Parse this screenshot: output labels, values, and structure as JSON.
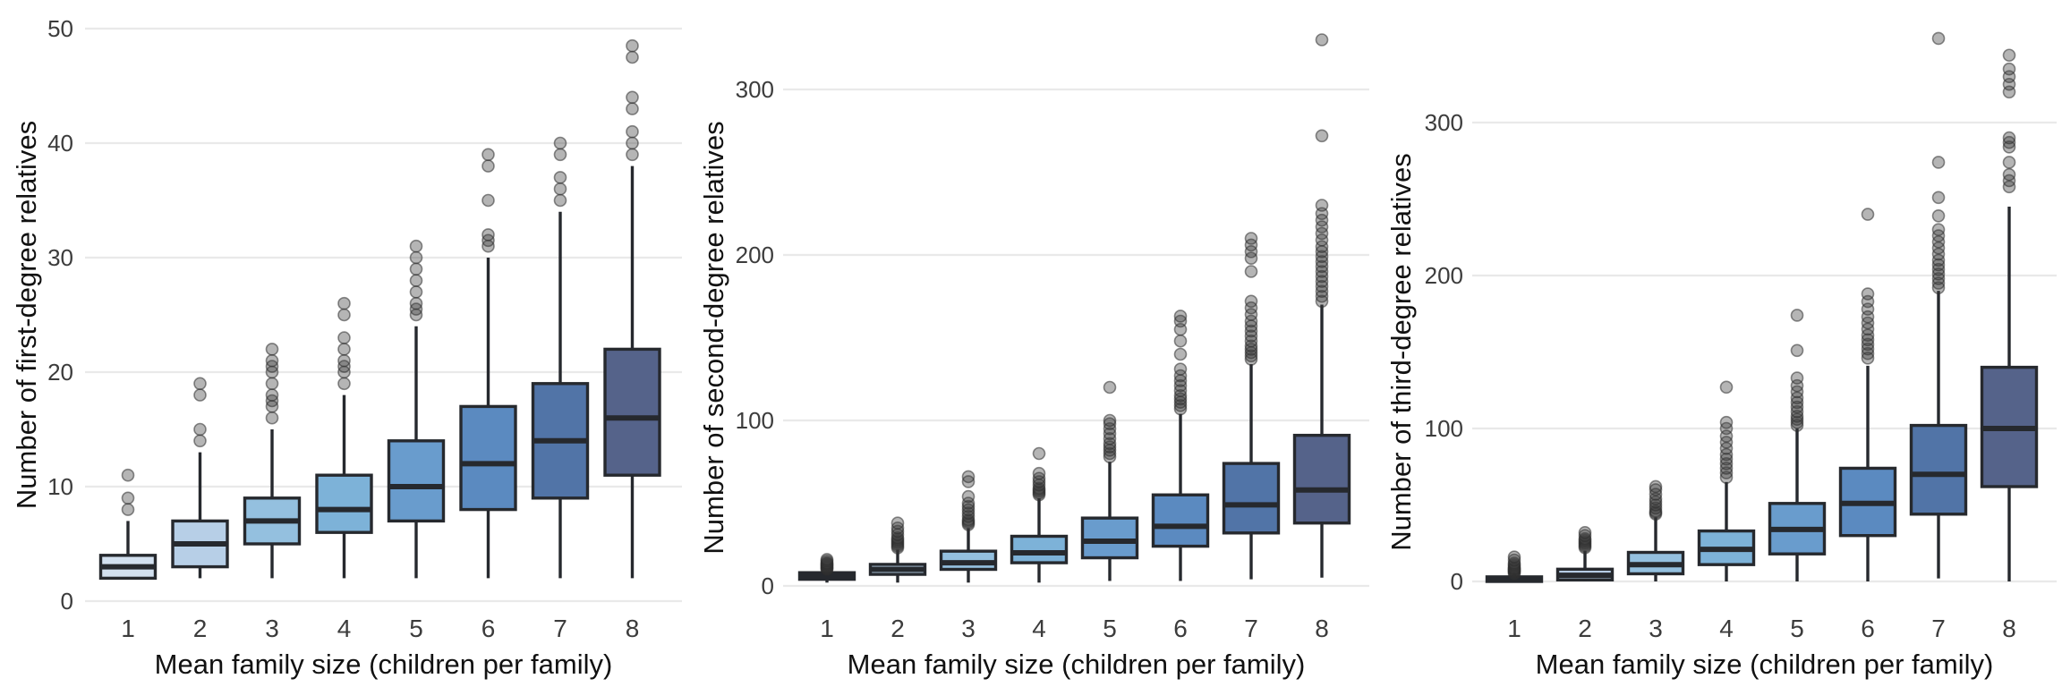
{
  "figure": {
    "background": "#ffffff",
    "xlabel": "Mean family size (children per family)"
  },
  "colors": {
    "box_stroke": "#26292e",
    "median": "#26292e",
    "whisker": "#26292e",
    "gridline": "#e9e9e9",
    "tick_text": "#3c3c3c",
    "axis_title_text": "#111111",
    "outlier_fill": "rgba(60,60,60,0.38)",
    "outlier_stroke": "rgba(45,45,45,0.55)",
    "palette": [
      "#d2e0ef",
      "#b7cfe7",
      "#94c0df",
      "#7db2d8",
      "#699ccd",
      "#5b8ac0",
      "#5174a7",
      "#55638a"
    ]
  },
  "chart_data": [
    {
      "type": "boxplot",
      "title": "",
      "xlabel": "Mean family size (children per family)",
      "ylabel": "Number of first-degree relatives",
      "ylim": [
        0,
        51
      ],
      "yticks": [
        0,
        10,
        20,
        30,
        40,
        50
      ],
      "grid": true,
      "categories": [
        "1",
        "2",
        "3",
        "4",
        "5",
        "6",
        "7",
        "8"
      ],
      "boxes": [
        {
          "category": "1",
          "whisker_low": 2,
          "q1": 2,
          "median": 3,
          "q3": 4,
          "whisker_high": 7,
          "outliers": [
            8,
            9,
            11
          ],
          "fill": "#d2e0ef"
        },
        {
          "category": "2",
          "whisker_low": 2,
          "q1": 3,
          "median": 5,
          "q3": 7,
          "whisker_high": 13,
          "outliers": [
            14,
            15,
            18,
            19
          ],
          "fill": "#b7cfe7"
        },
        {
          "category": "3",
          "whisker_low": 2,
          "q1": 5,
          "median": 7,
          "q3": 9,
          "whisker_high": 15,
          "outliers": [
            16,
            17,
            17.5,
            18,
            19,
            20,
            20.5,
            21,
            22
          ],
          "fill": "#94c0df"
        },
        {
          "category": "4",
          "whisker_low": 2,
          "q1": 6,
          "median": 8,
          "q3": 11,
          "whisker_high": 18,
          "outliers": [
            19,
            20,
            20.5,
            21,
            22,
            23,
            25,
            26
          ],
          "fill": "#7db2d8"
        },
        {
          "category": "5",
          "whisker_low": 2,
          "q1": 7,
          "median": 10,
          "q3": 14,
          "whisker_high": 24,
          "outliers": [
            25,
            25.5,
            26,
            27,
            28,
            29,
            30,
            31
          ],
          "fill": "#699ccd"
        },
        {
          "category": "6",
          "whisker_low": 2,
          "q1": 8,
          "median": 12,
          "q3": 17,
          "whisker_high": 30,
          "outliers": [
            31,
            31.5,
            32,
            35,
            38,
            39
          ],
          "fill": "#5b8ac0"
        },
        {
          "category": "7",
          "whisker_low": 2,
          "q1": 9,
          "median": 14,
          "q3": 19,
          "whisker_high": 34,
          "outliers": [
            35,
            36,
            37,
            39,
            40
          ],
          "fill": "#5174a7"
        },
        {
          "category": "8",
          "whisker_low": 2,
          "q1": 11,
          "median": 16,
          "q3": 22,
          "whisker_high": 38,
          "outliers": [
            39,
            40,
            41,
            43,
            44,
            47.5,
            48.5
          ],
          "fill": "#55638a"
        }
      ]
    },
    {
      "type": "boxplot",
      "title": "",
      "xlabel": "Mean family size (children per family)",
      "ylabel": "Number of second-degree relatives",
      "ylim": [
        0,
        335
      ],
      "yticks": [
        0,
        100,
        200,
        300
      ],
      "grid": true,
      "categories": [
        "1",
        "2",
        "3",
        "4",
        "5",
        "6",
        "7",
        "8"
      ],
      "boxes": [
        {
          "category": "1",
          "whisker_low": 2,
          "q1": 4,
          "median": 6,
          "q3": 8,
          "whisker_high": 9,
          "outliers": [
            10,
            10.5,
            11,
            11.5,
            12,
            12.5,
            13,
            13.5,
            14,
            15,
            16
          ],
          "fill": "#d2e0ef"
        },
        {
          "category": "2",
          "whisker_low": 2,
          "q1": 7,
          "median": 10,
          "q3": 13,
          "whisker_high": 22,
          "outliers": [
            23,
            24,
            25,
            26,
            27,
            28,
            29,
            31,
            33,
            35,
            38
          ],
          "fill": "#b7cfe7"
        },
        {
          "category": "3",
          "whisker_low": 2,
          "q1": 10,
          "median": 14,
          "q3": 21,
          "whisker_high": 35,
          "outliers": [
            37,
            38,
            39,
            40,
            42,
            44,
            46,
            48,
            50,
            54,
            63,
            66
          ],
          "fill": "#94c0df"
        },
        {
          "category": "4",
          "whisker_low": 2,
          "q1": 14,
          "median": 20,
          "q3": 30,
          "whisker_high": 53,
          "outliers": [
            55,
            56,
            57,
            58,
            59,
            61,
            63,
            65,
            68,
            80
          ],
          "fill": "#7db2d8"
        },
        {
          "category": "5",
          "whisker_low": 3,
          "q1": 17,
          "median": 27,
          "q3": 41,
          "whisker_high": 75,
          "outliers": [
            78,
            80,
            82,
            84,
            86,
            89,
            92,
            95,
            98,
            100,
            120
          ],
          "fill": "#699ccd"
        },
        {
          "category": "6",
          "whisker_low": 3,
          "q1": 24,
          "median": 36,
          "q3": 55,
          "whisker_high": 104,
          "outliers": [
            107,
            109,
            111,
            113,
            115,
            118,
            121,
            124,
            127,
            131,
            140,
            148,
            155,
            160,
            163
          ],
          "fill": "#5b8ac0"
        },
        {
          "category": "7",
          "whisker_low": 4,
          "q1": 32,
          "median": 49,
          "q3": 74,
          "whisker_high": 134,
          "outliers": [
            137,
            139,
            141,
            143,
            145,
            148,
            151,
            154,
            157,
            160,
            164,
            168,
            172,
            190,
            198,
            202,
            206,
            210
          ],
          "fill": "#5174a7"
        },
        {
          "category": "8",
          "whisker_low": 5,
          "q1": 38,
          "median": 58,
          "q3": 91,
          "whisker_high": 170,
          "outliers": [
            172,
            175,
            178,
            181,
            184,
            187,
            190,
            193,
            196,
            199,
            202,
            205,
            209,
            213,
            217,
            221,
            225,
            230,
            272,
            330
          ],
          "fill": "#55638a"
        }
      ]
    },
    {
      "type": "boxplot",
      "title": "",
      "xlabel": "Mean family size (children per family)",
      "ylabel": "Number of third-degree relatives",
      "ylim": [
        0,
        360
      ],
      "yticks": [
        0,
        100,
        200,
        300
      ],
      "grid": true,
      "categories": [
        "1",
        "2",
        "3",
        "4",
        "5",
        "6",
        "7",
        "8"
      ],
      "boxes": [
        {
          "category": "1",
          "whisker_low": 0,
          "q1": 0,
          "median": 1,
          "q3": 3,
          "whisker_high": 6,
          "outliers": [
            5,
            6,
            6.5,
            7,
            7.5,
            8,
            8.5,
            9,
            10,
            11,
            12,
            14,
            16
          ],
          "fill": "#d2e0ef"
        },
        {
          "category": "2",
          "whisker_low": 0,
          "q1": 1,
          "median": 4,
          "q3": 8,
          "whisker_high": 20,
          "outliers": [
            22,
            23,
            24,
            25,
            26,
            27,
            28,
            30,
            32
          ],
          "fill": "#b7cfe7"
        },
        {
          "category": "3",
          "whisker_low": 0,
          "q1": 5,
          "median": 11,
          "q3": 19,
          "whisker_high": 42,
          "outliers": [
            44,
            45,
            46,
            48,
            50,
            52,
            54,
            57,
            60,
            62
          ],
          "fill": "#94c0df"
        },
        {
          "category": "4",
          "whisker_low": 0,
          "q1": 11,
          "median": 21,
          "q3": 33,
          "whisker_high": 65,
          "outliers": [
            68,
            71,
            74,
            77,
            80,
            83,
            87,
            91,
            95,
            100,
            104,
            127
          ],
          "fill": "#7db2d8"
        },
        {
          "category": "5",
          "whisker_low": 0,
          "q1": 18,
          "median": 34,
          "q3": 51,
          "whisker_high": 100,
          "outliers": [
            102,
            104,
            106,
            108,
            111,
            114,
            117,
            120,
            124,
            128,
            133,
            151,
            174
          ],
          "fill": "#699ccd"
        },
        {
          "category": "6",
          "whisker_low": 0,
          "q1": 30,
          "median": 51,
          "q3": 74,
          "whisker_high": 141,
          "outliers": [
            146,
            149,
            152,
            155,
            158,
            161,
            165,
            169,
            173,
            178,
            183,
            188,
            240
          ],
          "fill": "#5b8ac0"
        },
        {
          "category": "7",
          "whisker_low": 2,
          "q1": 44,
          "median": 70,
          "q3": 102,
          "whisker_high": 190,
          "outliers": [
            192,
            195,
            198,
            201,
            204,
            207,
            210,
            214,
            218,
            222,
            226,
            230,
            239,
            251,
            274,
            355
          ],
          "fill": "#5174a7"
        },
        {
          "category": "8",
          "whisker_low": 0,
          "q1": 62,
          "median": 100,
          "q3": 140,
          "whisker_high": 245,
          "outliers": [
            258,
            262,
            266,
            274,
            284,
            287,
            290,
            320,
            325,
            330,
            335,
            344
          ],
          "fill": "#55638a"
        }
      ]
    }
  ]
}
